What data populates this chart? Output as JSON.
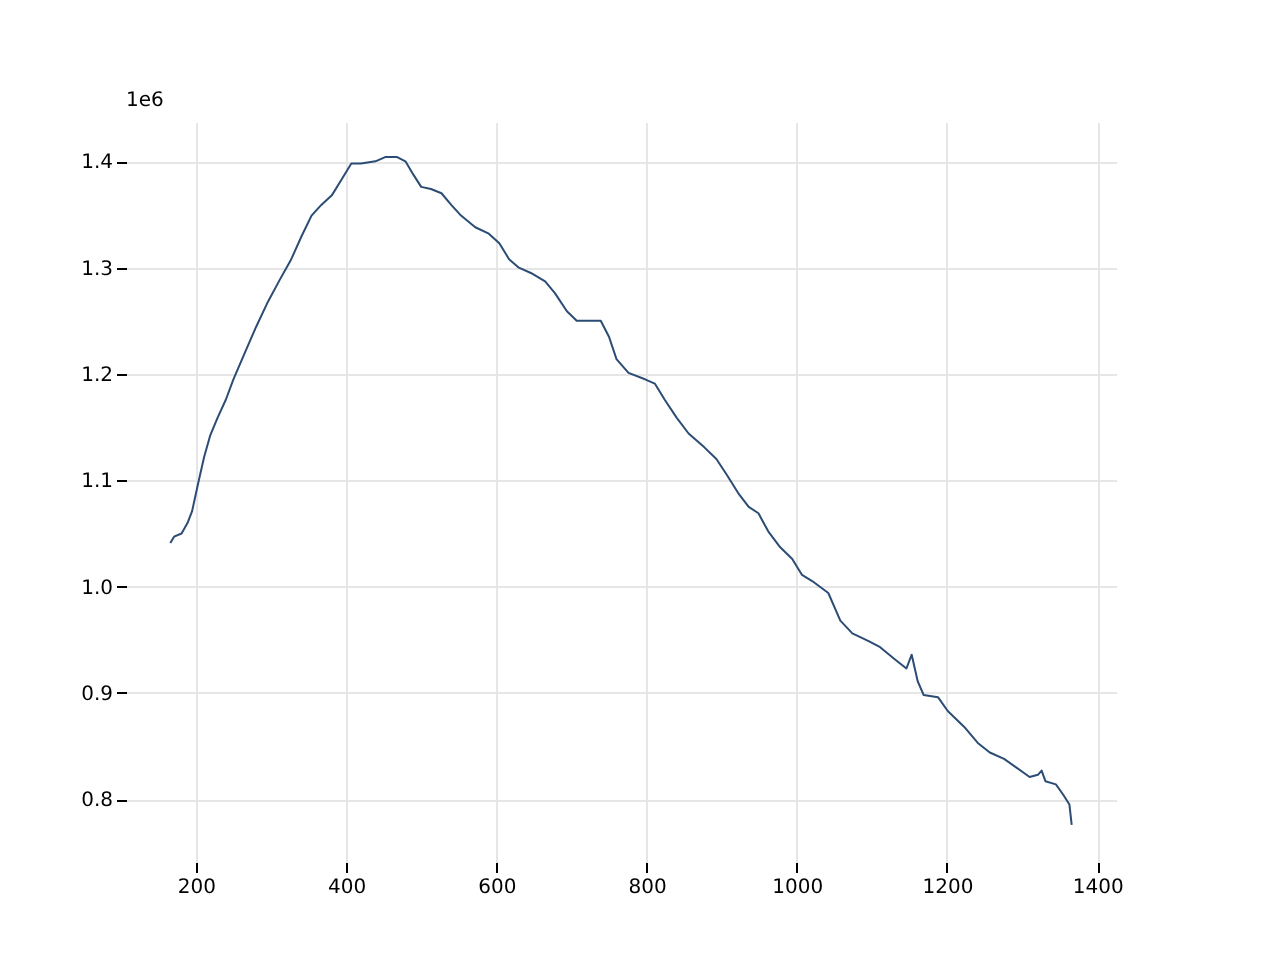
{
  "chart_data": {
    "type": "line",
    "x": [
      166,
      171,
      181,
      189,
      195,
      203,
      211,
      219,
      229,
      240,
      250,
      264,
      280,
      296,
      312,
      327,
      341,
      354,
      367,
      381,
      394,
      407,
      420,
      439,
      452,
      468,
      479,
      490,
      500,
      513,
      527,
      540,
      553,
      572,
      590,
      604,
      617,
      630,
      646,
      665,
      678,
      694,
      707,
      723,
      739,
      750,
      760,
      776,
      798,
      811,
      824,
      840,
      856,
      877,
      893,
      907,
      922,
      936,
      949,
      962,
      978,
      994,
      1007,
      1021,
      1042,
      1058,
      1074,
      1095,
      1111,
      1130,
      1146,
      1153,
      1161,
      1169,
      1188,
      1201,
      1223,
      1241,
      1257,
      1276,
      1292,
      1310,
      1321,
      1326,
      1331,
      1345,
      1355,
      1363,
      1366
    ],
    "series": [
      {
        "color": "#2b4c74",
        "values": [
          1.041,
          1.047,
          1.05,
          1.06,
          1.071,
          1.097,
          1.122,
          1.142,
          1.159,
          1.176,
          1.195,
          1.218,
          1.244,
          1.268,
          1.289,
          1.308,
          1.33,
          1.349,
          1.359,
          1.368,
          1.383,
          1.398,
          1.398,
          1.4,
          1.404,
          1.404,
          1.4,
          1.387,
          1.376,
          1.374,
          1.37,
          1.359,
          1.349,
          1.338,
          1.332,
          1.323,
          1.308,
          1.3,
          1.295,
          1.287,
          1.276,
          1.259,
          1.25,
          1.25,
          1.25,
          1.235,
          1.214,
          1.201,
          1.195,
          1.191,
          1.176,
          1.159,
          1.144,
          1.131,
          1.12,
          1.105,
          1.088,
          1.075,
          1.069,
          1.052,
          1.037,
          1.026,
          1.011,
          1.005,
          0.994,
          0.968,
          0.956,
          0.949,
          0.943,
          0.932,
          0.923,
          0.936,
          0.911,
          0.898,
          0.896,
          0.883,
          0.868,
          0.853,
          0.844,
          0.838,
          0.83,
          0.821,
          0.823,
          0.827,
          0.817,
          0.814,
          0.804,
          0.795,
          0.776
        ]
      }
    ],
    "xlim": [
      107,
      1425
    ],
    "xticks": [
      200,
      400,
      600,
      800,
      1000,
      1200,
      1400
    ],
    "ylim": [
      0.741,
      1.437
    ],
    "yticks": [
      0.8,
      0.9,
      {
        "value": 1.0,
        "label": "1.0"
      },
      1.1,
      1.2,
      1.3,
      1.4
    ],
    "annotations": [
      "1e6"
    ],
    "grid": true,
    "line_style": "solid",
    "marker": "none"
  }
}
